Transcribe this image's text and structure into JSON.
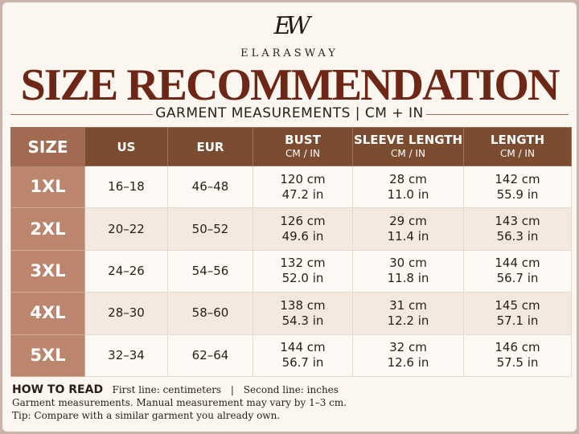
{
  "brand": {
    "monogram": "EW",
    "name": "ELARASWAY"
  },
  "title": "SIZE RECOMMENDATION",
  "subtitle": "GARMENT MEASUREMENTS | CM + IN",
  "table": {
    "headers": [
      {
        "label": "SIZE",
        "unit": ""
      },
      {
        "label": "US",
        "unit": ""
      },
      {
        "label": "EUR",
        "unit": ""
      },
      {
        "label": "BUST",
        "unit": "CM / IN"
      },
      {
        "label": "SLEEVE LENGTH",
        "unit": "CM / IN"
      },
      {
        "label": "LENGTH",
        "unit": "CM / IN"
      }
    ],
    "rows": [
      {
        "size": "1XL",
        "us": "16–18",
        "eur": "46–48",
        "bust_cm": "120 cm",
        "bust_in": "47.2 in",
        "sleeve_cm": "28 cm",
        "sleeve_in": "11.0 in",
        "length_cm": "142 cm",
        "length_in": "55.9 in"
      },
      {
        "size": "2XL",
        "us": "20–22",
        "eur": "50–52",
        "bust_cm": "126 cm",
        "bust_in": "49.6 in",
        "sleeve_cm": "29 cm",
        "sleeve_in": "11.4 in",
        "length_cm": "143 cm",
        "length_in": "56.3 in"
      },
      {
        "size": "3XL",
        "us": "24–26",
        "eur": "54–56",
        "bust_cm": "132 cm",
        "bust_in": "52.0 in",
        "sleeve_cm": "30 cm",
        "sleeve_in": "11.8 in",
        "length_cm": "144 cm",
        "length_in": "56.7 in"
      },
      {
        "size": "4XL",
        "us": "28–30",
        "eur": "58–60",
        "bust_cm": "138 cm",
        "bust_in": "54.3 in",
        "sleeve_cm": "31 cm",
        "sleeve_in": "12.2 in",
        "length_cm": "145 cm",
        "length_in": "57.1 in"
      },
      {
        "size": "5XL",
        "us": "32–34",
        "eur": "62–64",
        "bust_cm": "144 cm",
        "bust_in": "56.7 in",
        "sleeve_cm": "32 cm",
        "sleeve_in": "12.6 in",
        "length_cm": "146 cm",
        "length_in": "57.5 in"
      }
    ]
  },
  "footer": {
    "how_to_read": "HOW TO READ",
    "first_line": "First line: centimeters",
    "separator": "|",
    "second_line": "Second line: inches",
    "note": "Garment measurements. Manual measurement may vary by 1–3 cm.",
    "tip": "Tip: Compare with a similar garment you already own."
  },
  "colors": {
    "title": "#6e2716",
    "header_bg": "#7c4c31",
    "size_cell_bg": "#bb866d",
    "alt_row_bg": "#f3e9df",
    "page_bg": "#fbf6ef"
  }
}
